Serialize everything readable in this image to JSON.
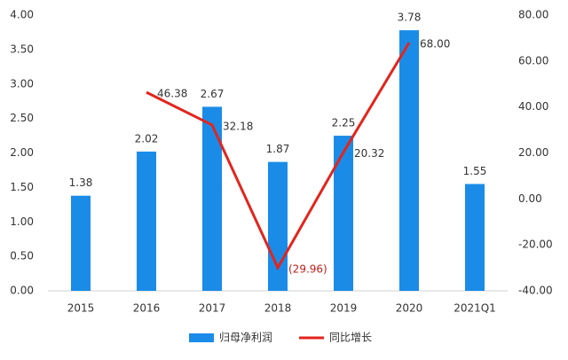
{
  "chart_data": {
    "type": "bar",
    "categories": [
      "2015",
      "2016",
      "2017",
      "2018",
      "2019",
      "2020",
      "2021Q1"
    ],
    "series": [
      {
        "name": "归母净利润",
        "type": "bar",
        "color": "#1a8ce8",
        "values": [
          1.38,
          2.02,
          2.67,
          1.87,
          2.25,
          3.78,
          1.55
        ]
      },
      {
        "name": "同比增长",
        "type": "line",
        "axis": "y2",
        "color": "#e3241c",
        "values": [
          null,
          46.38,
          32.18,
          -29.96,
          20.32,
          68.0,
          null
        ],
        "value_labels": [
          null,
          "46.38",
          "32.18",
          "(29.96)",
          "20.32",
          "68.00",
          null
        ]
      }
    ],
    "negative_label_color": "#c0201a",
    "ylim": [
      0,
      4
    ],
    "yticks": [
      {
        "value": 0,
        "label": "0.00"
      },
      {
        "value": 0.5,
        "label": "0.50"
      },
      {
        "value": 1,
        "label": "1.00"
      },
      {
        "value": 1.5,
        "label": "1.50"
      },
      {
        "value": 2,
        "label": "2.00"
      },
      {
        "value": 2.5,
        "label": "2.50"
      },
      {
        "value": 3,
        "label": "3.00"
      },
      {
        "value": 3.5,
        "label": "3.50"
      },
      {
        "value": 4,
        "label": "4.00"
      }
    ],
    "y2lim": [
      -40,
      80
    ],
    "y2ticks": [
      {
        "value": -40,
        "label": "-40.00"
      },
      {
        "value": -20,
        "label": "-20.00"
      },
      {
        "value": 0,
        "label": "0.00"
      },
      {
        "value": 20,
        "label": "20.00"
      },
      {
        "value": 40,
        "label": "40.00"
      },
      {
        "value": 60,
        "label": "60.00"
      },
      {
        "value": 80,
        "label": "80.00"
      }
    ],
    "legend": "bottom"
  }
}
